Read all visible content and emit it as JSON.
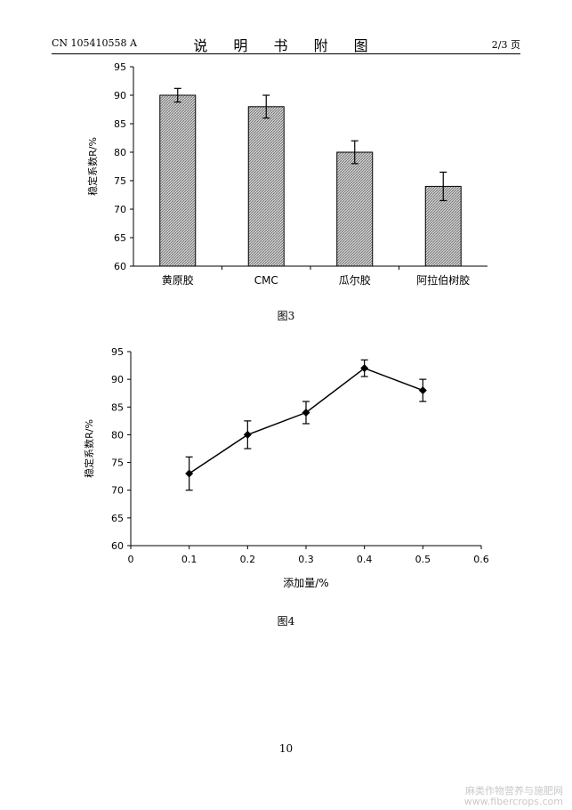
{
  "header": {
    "doc_number": "CN 105410558 A",
    "title": "说 明 书 附 图",
    "page_of": "2/3 页"
  },
  "figures": [
    {
      "caption": "图3"
    },
    {
      "caption": "图4"
    }
  ],
  "footer": {
    "page_number": "10"
  },
  "watermark": {
    "line1": "麻类作物营养与施肥网",
    "line2": "www.fibercrops.com"
  },
  "chart_data": [
    {
      "type": "bar",
      "title": "",
      "xlabel": "",
      "ylabel": "稳定系数R/%",
      "ylim": [
        60,
        95
      ],
      "yticks": [
        60,
        65,
        70,
        75,
        80,
        85,
        90,
        95
      ],
      "categories": [
        "黄原胶",
        "CMC",
        "瓜尔胶",
        "阿拉伯树胶"
      ],
      "values": [
        90,
        88,
        80,
        74
      ],
      "errors": [
        1.2,
        2.0,
        2.0,
        2.5
      ],
      "bar_fill": "#b8b8b8",
      "grid": false
    },
    {
      "type": "line",
      "title": "",
      "xlabel": "添加量/%",
      "ylabel": "稳定系数R/%",
      "xlim": [
        0,
        0.6
      ],
      "ylim": [
        60,
        95
      ],
      "xticks": [
        0,
        0.1,
        0.2,
        0.3,
        0.4,
        0.5,
        0.6
      ],
      "yticks": [
        60,
        65,
        70,
        75,
        80,
        85,
        90,
        95
      ],
      "x": [
        0.1,
        0.2,
        0.3,
        0.4,
        0.5
      ],
      "y": [
        73,
        80,
        84,
        92,
        88
      ],
      "errors": [
        3.0,
        2.5,
        2.0,
        1.5,
        2.0
      ],
      "marker": "diamond",
      "grid": false
    }
  ]
}
